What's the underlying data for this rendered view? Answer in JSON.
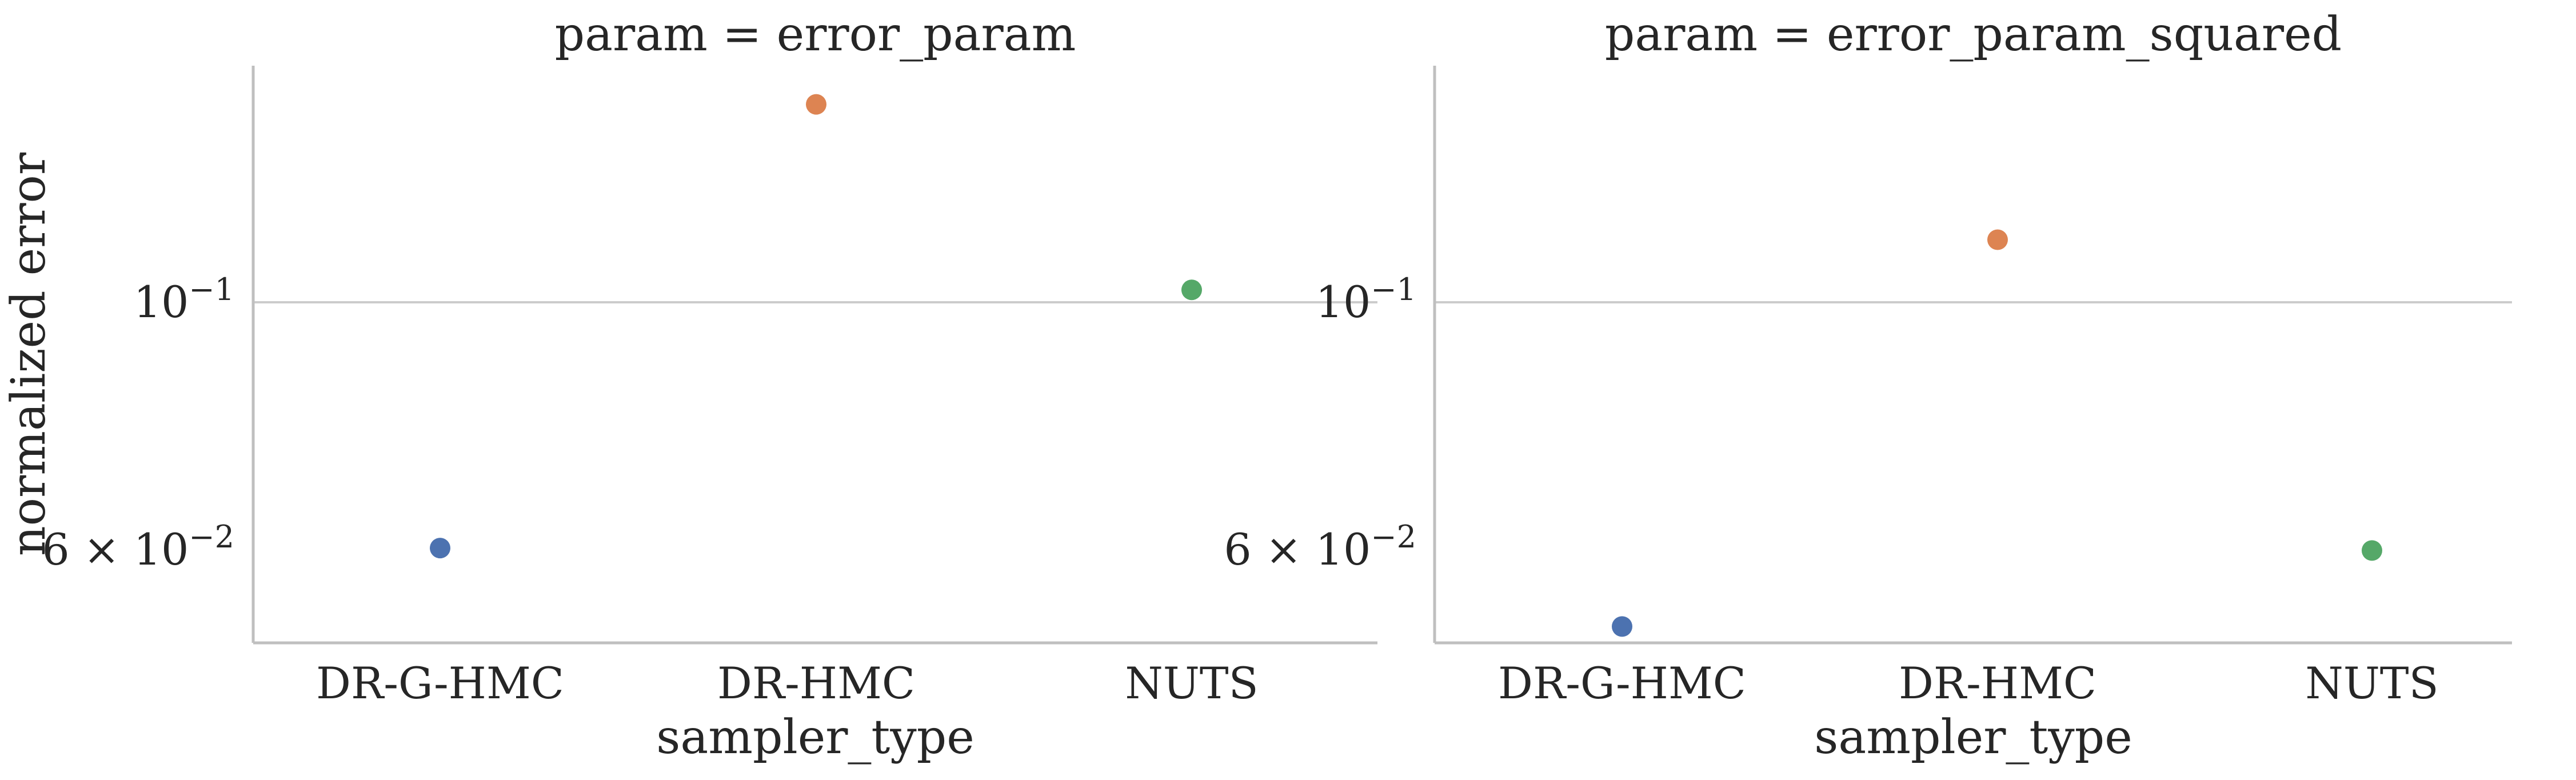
{
  "chart_data": [
    {
      "type": "scatter",
      "title": "param = error_param",
      "xlabel": "sampler_type",
      "ylabel": "normalized error",
      "categories": [
        "DR-G-HMC",
        "DR-HMC",
        "NUTS"
      ],
      "values": [
        0.0602,
        0.1505,
        0.1026
      ],
      "colors": [
        "#4c72b0",
        "#dd8452",
        "#55a868"
      ],
      "yscale": "log",
      "ylim": [
        0.0495,
        0.163
      ],
      "yticks": [
        {
          "value": 0.06,
          "label": "6 × 10−2"
        },
        {
          "value": 0.1,
          "label": "10−1"
        }
      ],
      "grid": "y-major"
    },
    {
      "type": "scatter",
      "title": "param = error_param_squared",
      "xlabel": "sampler_type",
      "ylabel": "",
      "categories": [
        "DR-G-HMC",
        "DR-HMC",
        "NUTS"
      ],
      "values": [
        0.0512,
        0.1138,
        0.0599
      ],
      "colors": [
        "#4c72b0",
        "#dd8452",
        "#55a868"
      ],
      "yscale": "log",
      "ylim": [
        0.0495,
        0.163
      ],
      "yticks": [
        {
          "value": 0.06,
          "label": "6 × 10−2"
        },
        {
          "value": 0.1,
          "label": "10−1"
        }
      ],
      "grid": "y-major"
    }
  ]
}
